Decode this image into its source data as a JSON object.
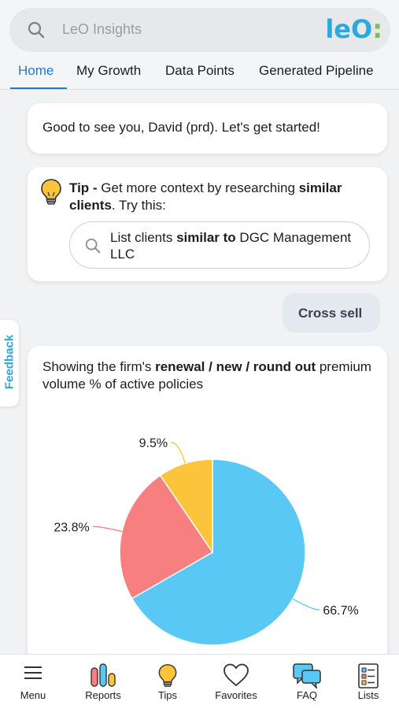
{
  "search": {
    "placeholder": "LeO Insights",
    "icon": "search-icon"
  },
  "logo": {
    "text": "leO",
    "dots": ":"
  },
  "tabs": [
    {
      "label": "Home",
      "active": true
    },
    {
      "label": "My Growth"
    },
    {
      "label": "Data Points"
    },
    {
      "label": "Generated Pipeline"
    }
  ],
  "greeting": "Good to see you, David (prd). Let's get started!",
  "tip": {
    "prefix": "Tip - ",
    "text_1": "Get more context by researching ",
    "bold": "similar clients",
    "text_2": ". Try this:",
    "suggestion_pre": "List clients ",
    "suggestion_bold": "similar to",
    "suggestion_post": " DGC Management LLC"
  },
  "user_message": "Cross sell",
  "chart_intro": {
    "pre": "Showing the firm's ",
    "bold": "renewal / new / round out",
    "post": " premium volume % of active policies"
  },
  "feedback_label": "Feedback",
  "chart_data": {
    "type": "pie",
    "slices": [
      {
        "label": "66.7%",
        "value": 66.7,
        "color": "#5ac8f5"
      },
      {
        "label": "23.8%",
        "value": 23.8,
        "color": "#f87f7f"
      },
      {
        "label": "9.5%",
        "value": 9.5,
        "color": "#fbc43a"
      }
    ]
  },
  "bottom_nav": [
    {
      "label": "Menu",
      "icon": "menu-icon"
    },
    {
      "label": "Reports",
      "icon": "reports-icon"
    },
    {
      "label": "Tips",
      "icon": "lightbulb-icon"
    },
    {
      "label": "Favorites",
      "icon": "heart-icon"
    },
    {
      "label": "FAQ",
      "icon": "chat-bubbles-icon"
    },
    {
      "label": "Lists",
      "icon": "list-icon"
    }
  ],
  "colors": {
    "accent": "#1f7bd0",
    "logo_blue": "#2aa8e0",
    "logo_green": "#7cc242"
  }
}
